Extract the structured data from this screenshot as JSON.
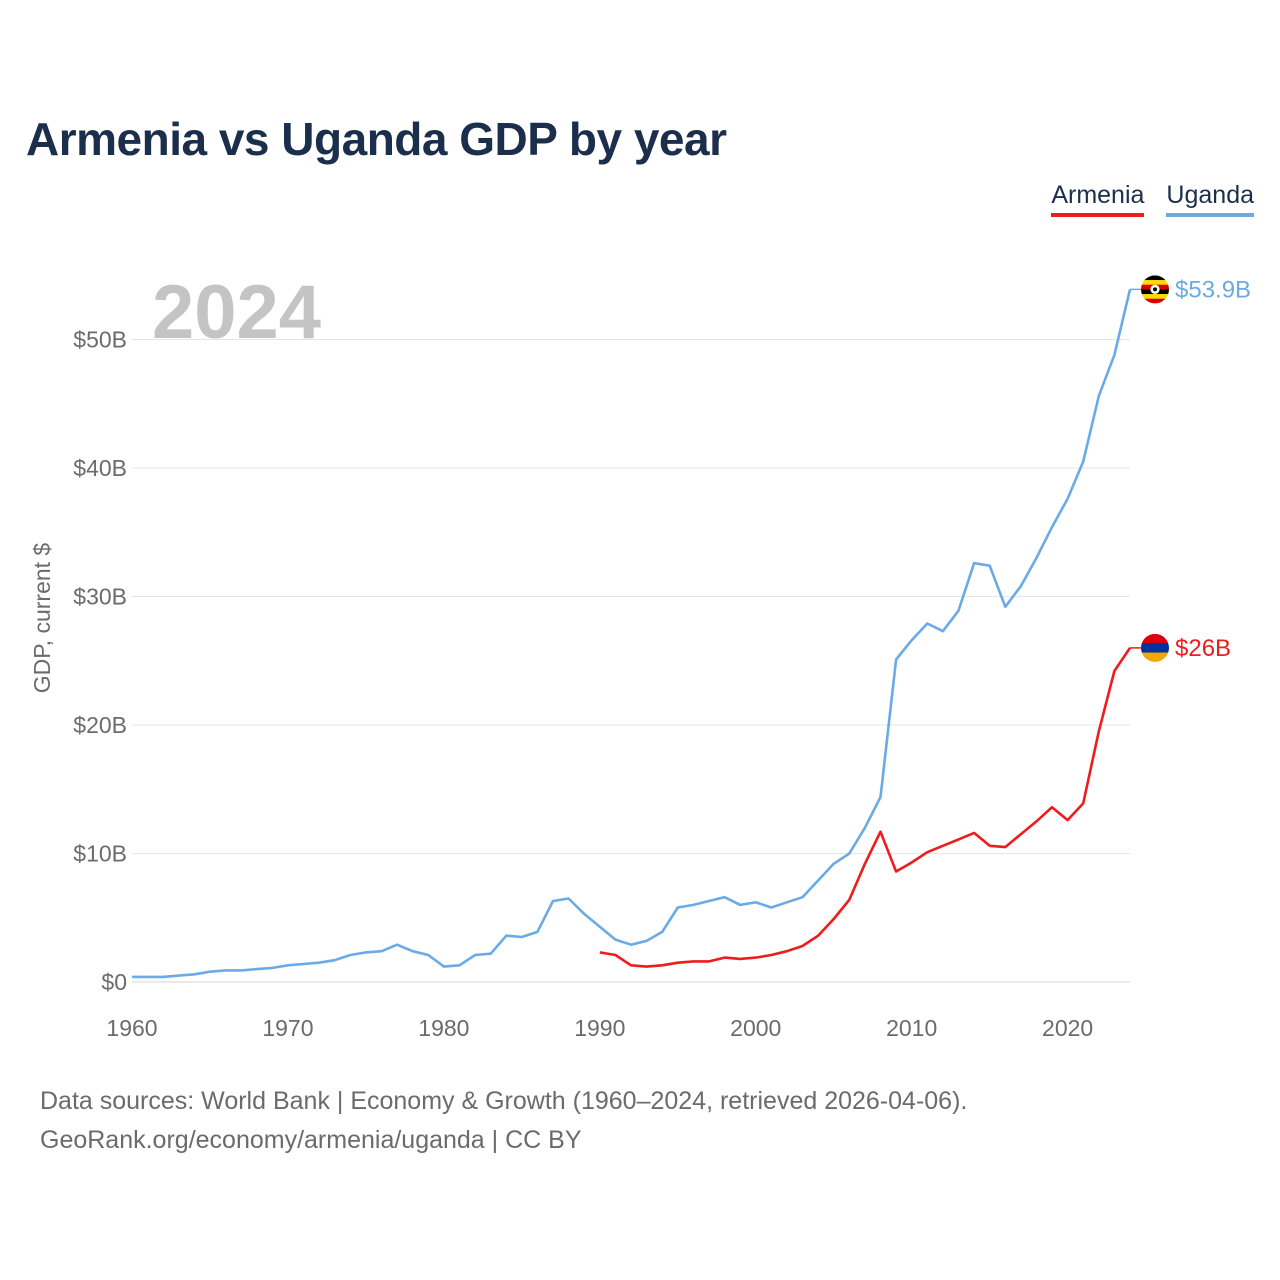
{
  "chart_data": {
    "type": "line",
    "title": "Armenia vs Uganda GDP by year",
    "ylabel": "GDP, current $",
    "xlabel": "",
    "year_label": "2024",
    "xlim": [
      1960,
      2024
    ],
    "ylim": [
      0,
      55
    ],
    "x_ticks": [
      1960,
      1970,
      1980,
      1990,
      2000,
      2010,
      2020
    ],
    "x_tick_labels": [
      "1960",
      "1970",
      "1980",
      "1990",
      "2000",
      "2010",
      "2020"
    ],
    "y_ticks": [
      0,
      10,
      20,
      30,
      40,
      50
    ],
    "y_tick_labels": [
      "$0",
      "$10B",
      "$20B",
      "$30B",
      "$40B",
      "$50B"
    ],
    "grid": true,
    "legend_position": "top-right",
    "series": [
      {
        "name": "Armenia",
        "color": "#ee1c1c",
        "end_label": "$26B",
        "flag": "armenia-flag",
        "flag_colors": [
          "#d90012",
          "#0033a0",
          "#f2a800"
        ],
        "x": [
          1990,
          1991,
          1992,
          1993,
          1994,
          1995,
          1996,
          1997,
          1998,
          1999,
          2000,
          2001,
          2002,
          2003,
          2004,
          2005,
          2006,
          2007,
          2008,
          2009,
          2010,
          2011,
          2012,
          2013,
          2014,
          2015,
          2016,
          2017,
          2018,
          2019,
          2020,
          2021,
          2022,
          2023,
          2024
        ],
        "values": [
          2.3,
          2.1,
          1.3,
          1.2,
          1.3,
          1.5,
          1.6,
          1.6,
          1.9,
          1.8,
          1.9,
          2.1,
          2.4,
          2.8,
          3.6,
          4.9,
          6.4,
          9.2,
          11.7,
          8.6,
          9.3,
          10.1,
          10.6,
          11.1,
          11.6,
          10.6,
          10.5,
          11.5,
          12.5,
          13.6,
          12.6,
          13.9,
          19.5,
          24.2,
          26.0
        ]
      },
      {
        "name": "Uganda",
        "color": "#6aaae6",
        "end_label": "$53.9B",
        "flag": "uganda-flag",
        "flag_colors": [
          "#000000",
          "#fcdc04",
          "#d90000"
        ],
        "x": [
          1960,
          1961,
          1962,
          1963,
          1964,
          1965,
          1966,
          1967,
          1968,
          1969,
          1970,
          1971,
          1972,
          1973,
          1974,
          1975,
          1976,
          1977,
          1978,
          1979,
          1980,
          1981,
          1982,
          1983,
          1984,
          1985,
          1986,
          1987,
          1988,
          1989,
          1990,
          1991,
          1992,
          1993,
          1994,
          1995,
          1996,
          1997,
          1998,
          1999,
          2000,
          2001,
          2002,
          2003,
          2004,
          2005,
          2006,
          2007,
          2008,
          2009,
          2010,
          2011,
          2012,
          2013,
          2014,
          2015,
          2016,
          2017,
          2018,
          2019,
          2020,
          2021,
          2022,
          2023,
          2024
        ],
        "values": [
          0.4,
          0.4,
          0.4,
          0.5,
          0.6,
          0.8,
          0.9,
          0.9,
          1.0,
          1.1,
          1.3,
          1.4,
          1.5,
          1.7,
          2.1,
          2.3,
          2.4,
          2.9,
          2.4,
          2.1,
          1.2,
          1.3,
          2.1,
          2.2,
          3.6,
          3.5,
          3.9,
          6.3,
          6.5,
          5.3,
          4.3,
          3.3,
          2.9,
          3.2,
          3.9,
          5.8,
          6.0,
          6.3,
          6.6,
          6.0,
          6.2,
          5.8,
          6.2,
          6.6,
          7.9,
          9.2,
          10.0,
          12.0,
          14.4,
          25.1,
          26.6,
          27.9,
          27.3,
          28.9,
          32.6,
          32.4,
          29.2,
          30.8,
          33.0,
          35.4,
          37.6,
          40.5,
          45.6,
          48.8,
          53.9
        ]
      }
    ]
  },
  "legend": {
    "armenia": "Armenia",
    "uganda": "Uganda"
  },
  "footer": {
    "line1": "Data sources: World Bank | Economy & Growth (1960–2024, retrieved 2026-04-06).",
    "line2": "GeoRank.org/economy/armenia/uganda | CC BY"
  }
}
